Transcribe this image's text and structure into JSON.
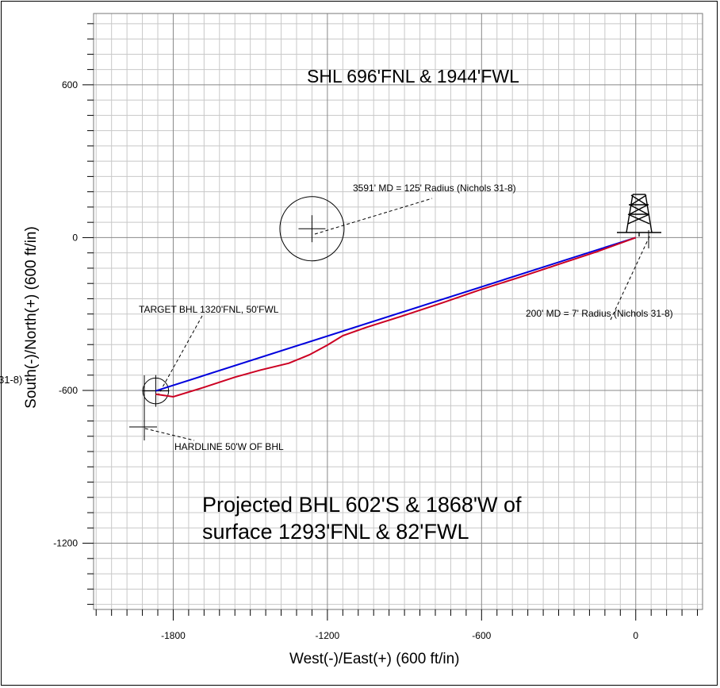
{
  "chart_data": {
    "type": "line",
    "xlabel": "West(-)/East(+) (600 ft/in)",
    "ylabel": "South(-)/North(+) (600 ft/in)",
    "xlim": [
      -2110,
      260
    ],
    "ylim": [
      -1460,
      880
    ],
    "x_ticks": [
      -1800,
      -1200,
      -600,
      0
    ],
    "y_ticks": [
      600,
      0,
      -600,
      -1200
    ],
    "grid": true,
    "series": [
      {
        "color": "#0000dd",
        "x": [
          0,
          -1868
        ],
        "y": [
          0,
          -602
        ]
      },
      {
        "color": "#cc0022",
        "x": [
          0,
          -150,
          -300,
          -450,
          -600,
          -750,
          -900,
          -1050,
          -1140,
          -1200,
          -1270,
          -1350,
          -1460,
          -1560,
          -1680,
          -1800,
          -1868
        ],
        "y": [
          0,
          -55,
          -105,
          -155,
          -203,
          -255,
          -305,
          -353,
          -385,
          -422,
          -460,
          -493,
          -520,
          -548,
          -588,
          -625,
          -615
        ]
      }
    ],
    "circles": [
      {
        "x": -1260,
        "y": 35,
        "radius": 125
      },
      {
        "x": -1868,
        "y": -602,
        "radius": 50
      }
    ],
    "annotations": [
      {
        "text": "SHL 696'FNL & 1944'FWL"
      },
      {
        "text": "3591' MD = 125' Radius (Nichols 31-8)"
      },
      {
        "text": "200' MD = 7' Radius (Nichols 31-8)"
      },
      {
        "text": "TARGET BHL 1320'FNL, 50'FWL"
      },
      {
        "text": "HARDLINE 50'W OF BHL"
      },
      {
        "text": "31-8)"
      }
    ],
    "projected_lines": [
      "Projected BHL 602'S & 1868'W of",
      "surface 1293'FNL & 82'FWL"
    ]
  }
}
